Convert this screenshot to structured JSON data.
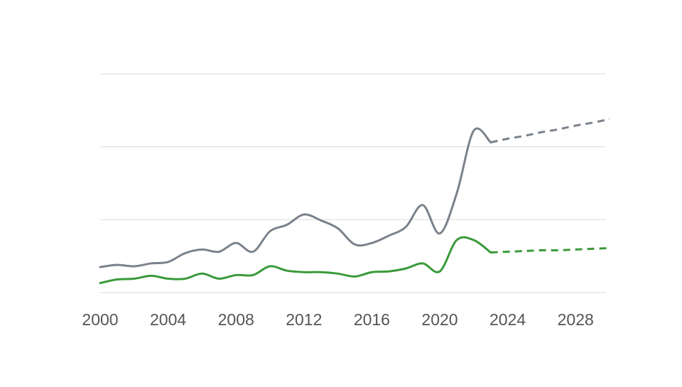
{
  "chart_data": {
    "type": "line",
    "x": [
      2000,
      2001,
      2002,
      2003,
      2004,
      2005,
      2006,
      2007,
      2008,
      2009,
      2010,
      2011,
      2012,
      2013,
      2014,
      2015,
      2016,
      2017,
      2018,
      2019,
      2020,
      2021,
      2022,
      2023,
      2024,
      2025,
      2026,
      2027,
      2028,
      2029,
      2030
    ],
    "xlim": [
      2000,
      2030
    ],
    "xticks": [
      2000,
      2004,
      2008,
      2012,
      2016,
      2020,
      2024,
      2028
    ],
    "ylim": [
      0,
      3
    ],
    "yticks": [
      0,
      1,
      2,
      3
    ],
    "y_tick_labels": false,
    "grid": true,
    "series": [
      {
        "color": "#7a828c",
        "dashed": false,
        "values": [
          0.35,
          0.38,
          0.36,
          0.4,
          0.42,
          0.54,
          0.59,
          0.56,
          0.68,
          0.56,
          0.84,
          0.93,
          1.07,
          0.99,
          0.88,
          0.66,
          0.68,
          0.78,
          0.9,
          1.2,
          0.81,
          1.36,
          2.22,
          2.06,
          null,
          null,
          null,
          null,
          null,
          null,
          null
        ]
      },
      {
        "color": "#7a828c",
        "dashed": true,
        "values": [
          null,
          null,
          null,
          null,
          null,
          null,
          null,
          null,
          null,
          null,
          null,
          null,
          null,
          null,
          null,
          null,
          null,
          null,
          null,
          null,
          null,
          null,
          null,
          2.06,
          2.11,
          2.15,
          2.2,
          2.24,
          2.29,
          2.33,
          2.38
        ]
      },
      {
        "color": "#3a9a3a",
        "dashed": false,
        "values": [
          0.13,
          0.18,
          0.19,
          0.23,
          0.19,
          0.19,
          0.26,
          0.19,
          0.24,
          0.24,
          0.36,
          0.3,
          0.28,
          0.28,
          0.26,
          0.22,
          0.28,
          0.29,
          0.33,
          0.4,
          0.29,
          0.72,
          0.72,
          0.55,
          null,
          null,
          null,
          null,
          null,
          null,
          null
        ]
      },
      {
        "color": "#3a9a3a",
        "dashed": true,
        "values": [
          null,
          null,
          null,
          null,
          null,
          null,
          null,
          null,
          null,
          null,
          null,
          null,
          null,
          null,
          null,
          null,
          null,
          null,
          null,
          null,
          null,
          null,
          null,
          0.55,
          0.56,
          0.57,
          0.58,
          0.58,
          0.59,
          0.6,
          0.61
        ]
      }
    ]
  }
}
